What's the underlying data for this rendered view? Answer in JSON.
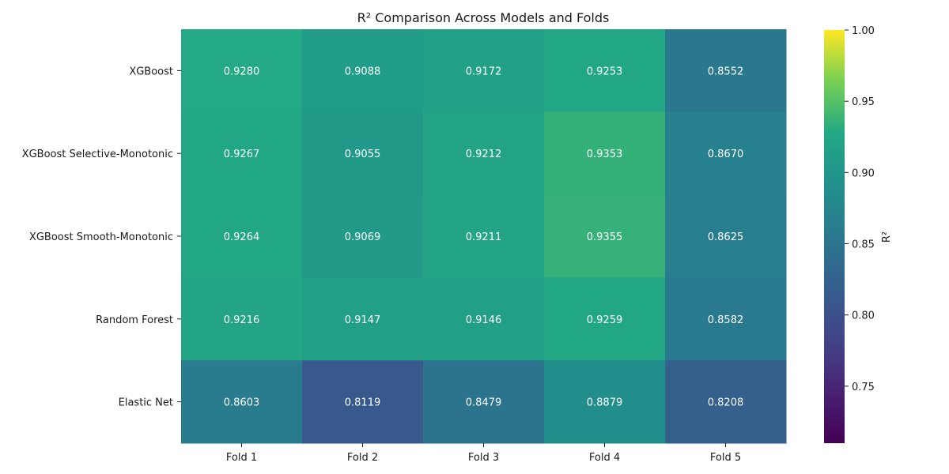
{
  "chart_data": {
    "type": "heatmap",
    "title": "R² Comparison Across Models and Folds",
    "xlabel": "",
    "ylabel": "",
    "rows": [
      "XGBoost",
      "XGBoost Selective-Monotonic",
      "XGBoost Smooth-Monotonic",
      "Random Forest",
      "Elastic Net"
    ],
    "columns": [
      "Fold 1",
      "Fold 2",
      "Fold 3",
      "Fold 4",
      "Fold 5"
    ],
    "values": [
      [
        0.928,
        0.9088,
        0.9172,
        0.9253,
        0.8552
      ],
      [
        0.9267,
        0.9055,
        0.9212,
        0.9353,
        0.867
      ],
      [
        0.9264,
        0.9069,
        0.9211,
        0.9355,
        0.8625
      ],
      [
        0.9216,
        0.9147,
        0.9146,
        0.9259,
        0.8582
      ],
      [
        0.8603,
        0.8119,
        0.8479,
        0.8879,
        0.8208
      ]
    ],
    "value_labels": [
      [
        "0.9280",
        "0.9088",
        "0.9172",
        "0.9253",
        "0.8552"
      ],
      [
        "0.9267",
        "0.9055",
        "0.9212",
        "0.9353",
        "0.8670"
      ],
      [
        "0.9264",
        "0.9069",
        "0.9211",
        "0.9355",
        "0.8625"
      ],
      [
        "0.9216",
        "0.9147",
        "0.9146",
        "0.9259",
        "0.8582"
      ],
      [
        "0.8603",
        "0.8119",
        "0.8479",
        "0.8879",
        "0.8208"
      ]
    ],
    "colormap": "viridis",
    "color_range": [
      0.71,
      1.0
    ],
    "colorbar": {
      "label": "R²",
      "ticks": [
        0.75,
        0.8,
        0.85,
        0.9,
        0.95,
        1.0
      ],
      "tick_labels": [
        "0.75",
        "0.80",
        "0.85",
        "0.90",
        "0.95",
        "1.00"
      ]
    }
  }
}
